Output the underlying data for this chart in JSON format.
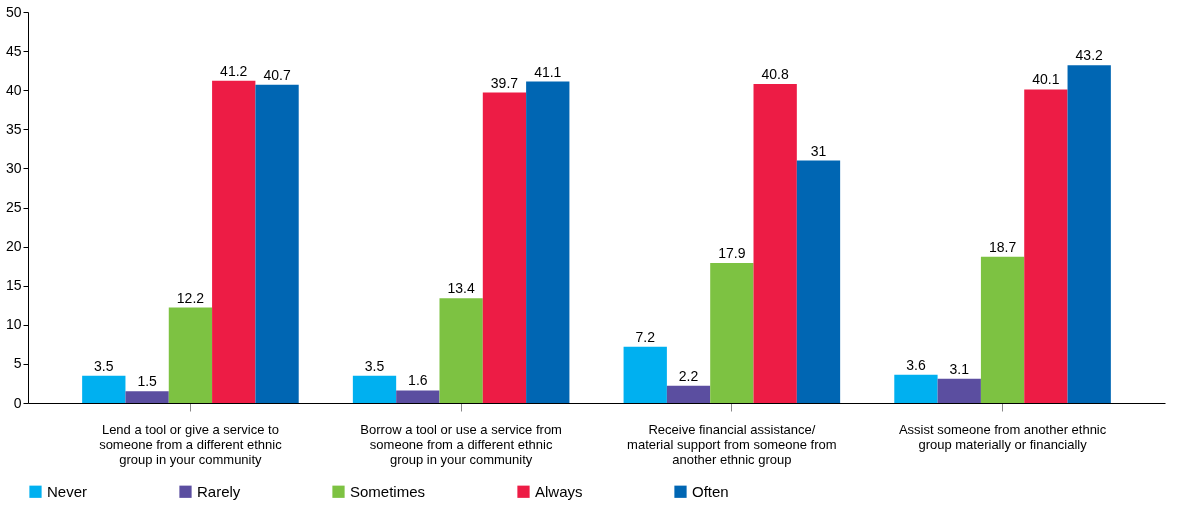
{
  "chart_data": {
    "type": "bar",
    "categories": [
      "Lend a tool or give a service to someone from a different ethnic group in your community",
      "Borrow a tool or use a service from someone from a different ethnic group in your community",
      "Receive financial assistance/ material support from someone from another ethnic group",
      "Assist someone from another ethnic group materially or financially"
    ],
    "series": [
      {
        "name": "Never",
        "color": "#00b0f0",
        "values": [
          3.5,
          3.5,
          7.2,
          3.6
        ]
      },
      {
        "name": "Rarely",
        "color": "#5b4ea0",
        "values": [
          1.5,
          1.6,
          2.2,
          3.1
        ]
      },
      {
        "name": "Sometimes",
        "color": "#7dc242",
        "values": [
          12.2,
          13.4,
          17.9,
          18.7
        ]
      },
      {
        "name": "Always",
        "color": "#ed1c45",
        "values": [
          41.2,
          39.7,
          40.8,
          40.1
        ]
      },
      {
        "name": "Often",
        "color": "#0066b3",
        "values": [
          40.7,
          41.1,
          31,
          43.2
        ]
      }
    ],
    "ylim": [
      0,
      50
    ],
    "yticks": [
      0,
      5,
      10,
      15,
      20,
      25,
      30,
      35,
      40,
      45,
      50
    ],
    "data_labels": true,
    "grid": false,
    "legend": "bottom"
  }
}
